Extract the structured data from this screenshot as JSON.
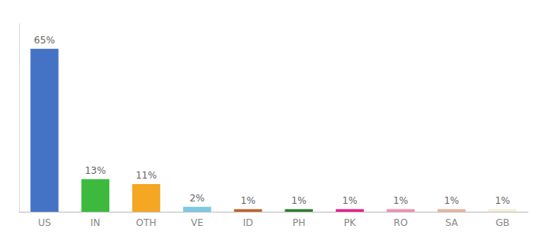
{
  "chart_data": {
    "type": "bar",
    "categories": [
      "US",
      "IN",
      "OTH",
      "VE",
      "ID",
      "PH",
      "PK",
      "RO",
      "SA",
      "GB"
    ],
    "values": [
      65,
      13,
      11,
      2,
      1,
      1,
      1,
      1,
      1,
      1
    ],
    "value_labels": [
      "65%",
      "13%",
      "11%",
      "2%",
      "1%",
      "1%",
      "1%",
      "1%",
      "1%",
      "1%"
    ],
    "colors": [
      "#4472c4",
      "#3dba3d",
      "#f5a623",
      "#7ec8e3",
      "#c0622b",
      "#2e7d32",
      "#e91e8c",
      "#f48fb1",
      "#e8b4a0",
      "#f5f0d8"
    ],
    "ylim": [
      0,
      75
    ],
    "data_labels": true,
    "tick_labels": "x",
    "grid": false
  }
}
